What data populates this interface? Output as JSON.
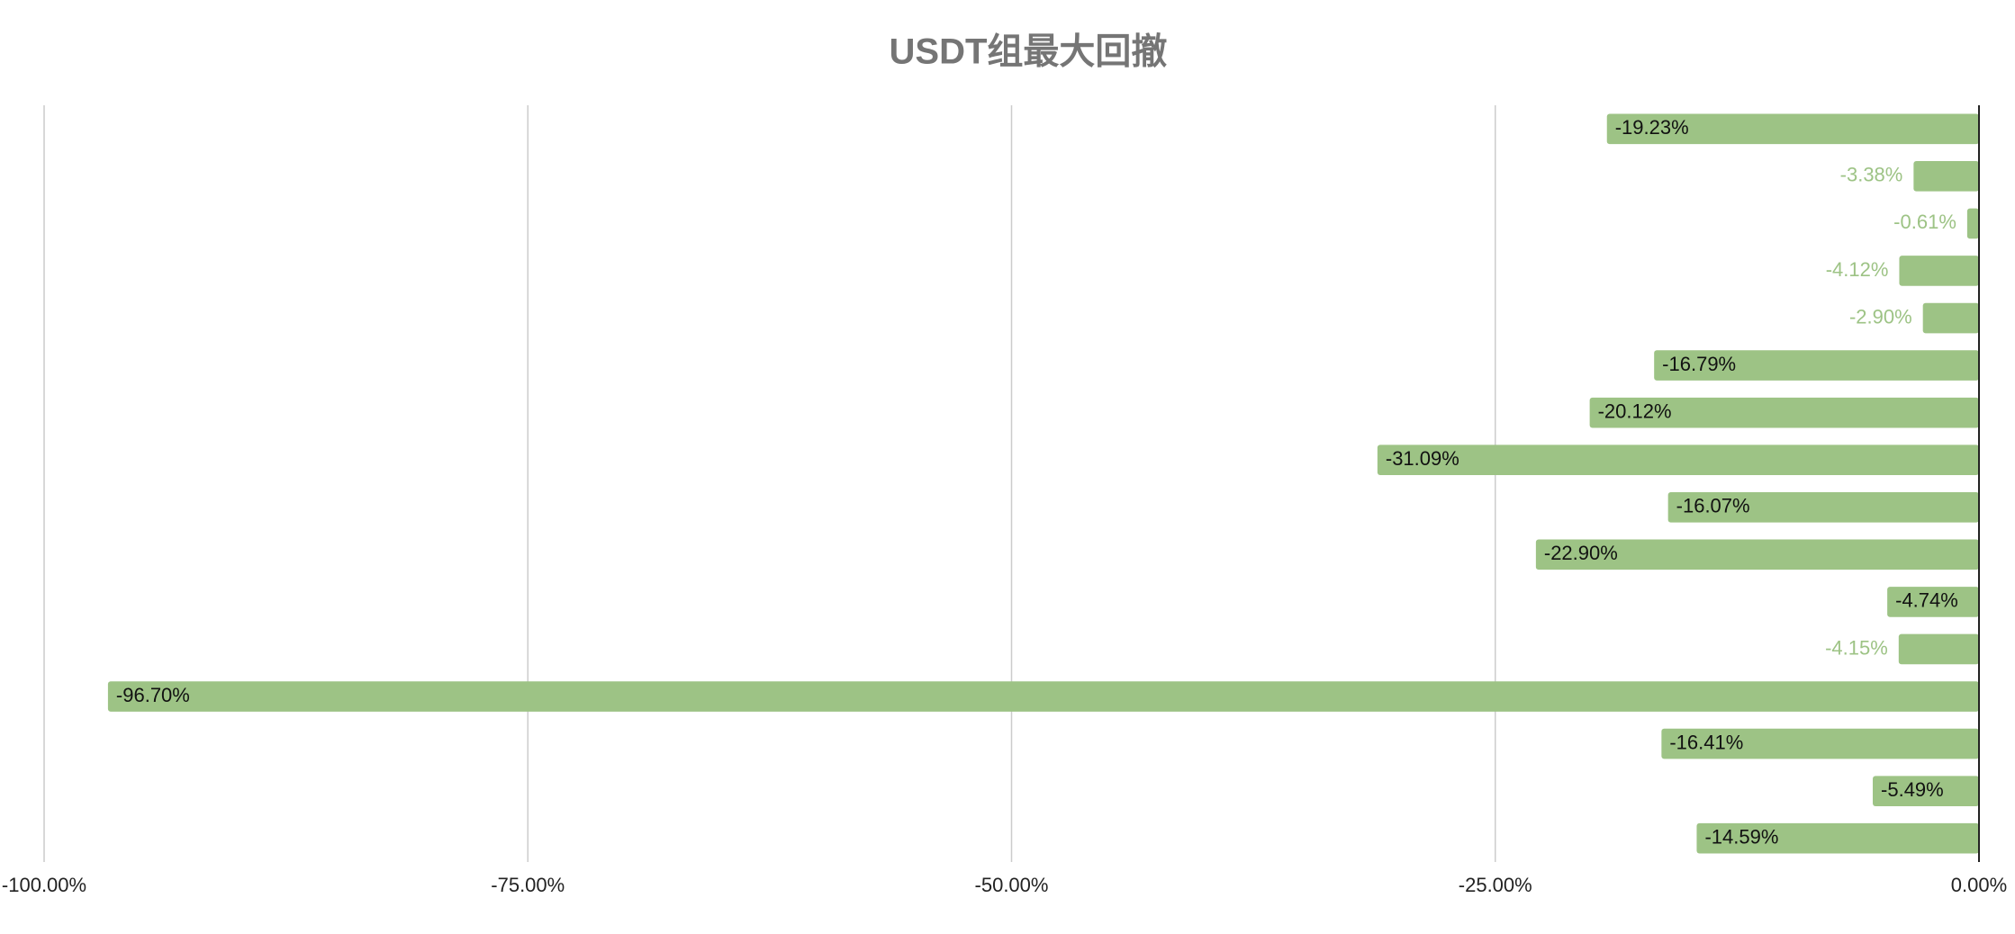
{
  "chart_data": {
    "type": "hbar",
    "title": "USDT组最大回撤",
    "categories": [
      null,
      null,
      null,
      null,
      null,
      null,
      null,
      null,
      null,
      null,
      null,
      null,
      null,
      null,
      null,
      null
    ],
    "values": [
      -19.23,
      -3.38,
      -0.61,
      -4.12,
      -2.9,
      -16.79,
      -20.12,
      -31.09,
      -16.07,
      -22.9,
      -4.74,
      -4.15,
      -96.7,
      -16.41,
      -5.49,
      -14.59
    ],
    "value_labels": [
      "-19.23%",
      "-3.38%",
      "-0.61%",
      "-4.12%",
      "-2.90%",
      "-16.79%",
      "-20.12%",
      "-31.09%",
      "-16.07%",
      "-22.90%",
      "-4.74%",
      "-4.15%",
      "-96.70%",
      "-16.41%",
      "-5.49%",
      "-14.59%"
    ],
    "color": "#9dc385",
    "xlim": [
      -100,
      0
    ],
    "xticks": [
      {
        "value": -100,
        "label": "-100.00%"
      },
      {
        "value": -75,
        "label": "-75.00%"
      },
      {
        "value": -50,
        "label": "-50.00%"
      },
      {
        "value": -25,
        "label": "-25.00%"
      },
      {
        "value": 0,
        "label": "0.00%"
      }
    ],
    "grid": true
  }
}
